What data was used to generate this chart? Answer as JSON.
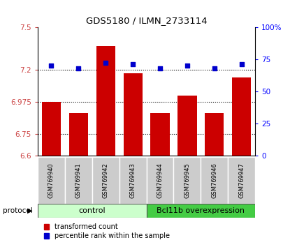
{
  "title": "GDS5180 / ILMN_2733114",
  "samples": [
    "GSM769940",
    "GSM769941",
    "GSM769942",
    "GSM769943",
    "GSM769944",
    "GSM769945",
    "GSM769946",
    "GSM769947"
  ],
  "red_values": [
    6.975,
    6.9,
    7.37,
    7.175,
    6.9,
    7.02,
    6.9,
    7.15
  ],
  "blue_values": [
    70,
    68,
    72,
    71,
    68,
    70,
    68,
    71
  ],
  "ylim_left": [
    6.6,
    7.5
  ],
  "ylim_right": [
    0,
    100
  ],
  "yticks_left": [
    6.6,
    6.75,
    6.975,
    7.2,
    7.5
  ],
  "yticks_right": [
    0,
    25,
    50,
    75,
    100
  ],
  "ytick_labels_left": [
    "6.6",
    "6.75",
    "6.975",
    "7.2",
    "7.5"
  ],
  "ytick_labels_right": [
    "0",
    "25",
    "50",
    "75",
    "100%"
  ],
  "hline_y": [
    6.75,
    6.975,
    7.2
  ],
  "bar_color": "#cc0000",
  "dot_color": "#0000cc",
  "control_label": "control",
  "overexpression_label": "Bcl11b overexpression",
  "protocol_label": "protocol",
  "legend_red": "transformed count",
  "legend_blue": "percentile rank within the sample",
  "control_color": "#ccffcc",
  "overexpression_color": "#44cc44",
  "label_bg_color": "#cccccc",
  "bar_width": 0.7
}
